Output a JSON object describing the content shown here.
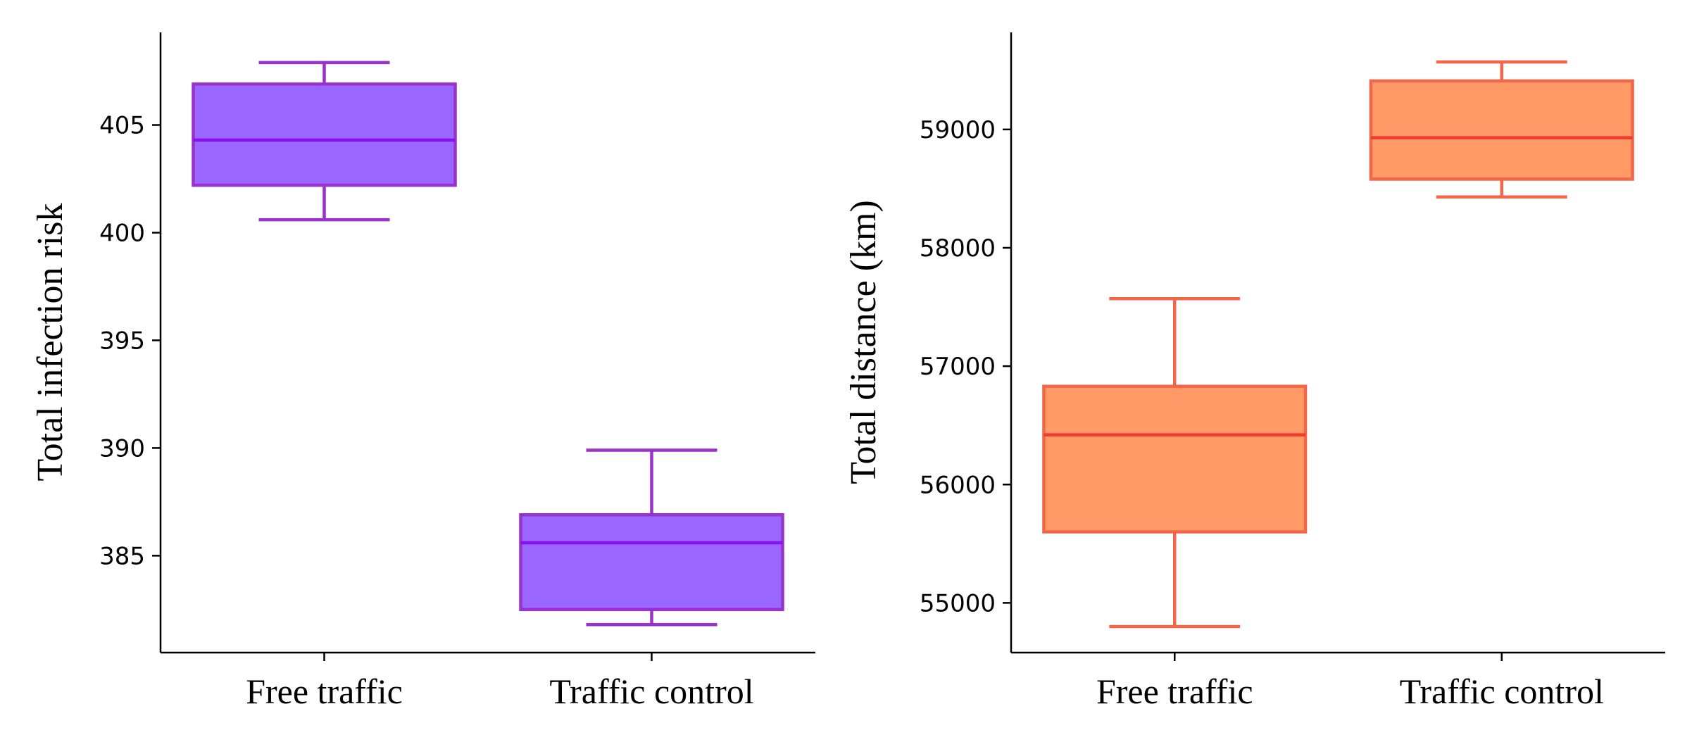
{
  "chart_data": [
    {
      "type": "box",
      "ylabel": "Total infection risk",
      "xlabel": "",
      "categories": [
        "Free traffic",
        "Traffic control"
      ],
      "ylim": [
        380.5,
        409.3
      ],
      "yticks": [
        385,
        390,
        395,
        400,
        405
      ],
      "ytick_labels": [
        "385",
        "390",
        "395",
        "400",
        "405"
      ],
      "boxes": [
        {
          "category": "Free traffic",
          "whisker_low": 400.6,
          "q1": 402.2,
          "median": 404.3,
          "q3": 406.9,
          "whisker_high": 407.9
        },
        {
          "category": "Traffic control",
          "whisker_low": 381.8,
          "q1": 382.5,
          "median": 385.6,
          "q3": 386.9,
          "whisker_high": 389.9
        }
      ],
      "colors": {
        "fill": "#9966ff",
        "edge": "#9932cc",
        "median": "#8a0ff0"
      }
    },
    {
      "type": "box",
      "ylabel": "Total distance (km)",
      "xlabel": "",
      "categories": [
        "Free traffic",
        "Traffic control"
      ],
      "ylim": [
        54580,
        59820
      ],
      "yticks": [
        55000,
        56000,
        57000,
        58000,
        59000
      ],
      "ytick_labels": [
        "55000",
        "56000",
        "57000",
        "58000",
        "59000"
      ],
      "boxes": [
        {
          "category": "Free traffic",
          "whisker_low": 54800,
          "q1": 55600,
          "median": 56420,
          "q3": 56830,
          "whisker_high": 57570
        },
        {
          "category": "Traffic control",
          "whisker_low": 58430,
          "q1": 58580,
          "median": 58930,
          "q3": 59410,
          "whisker_high": 59570
        }
      ],
      "colors": {
        "fill": "#ff9966",
        "edge": "#f2674a",
        "median": "#f03a2e"
      }
    }
  ]
}
